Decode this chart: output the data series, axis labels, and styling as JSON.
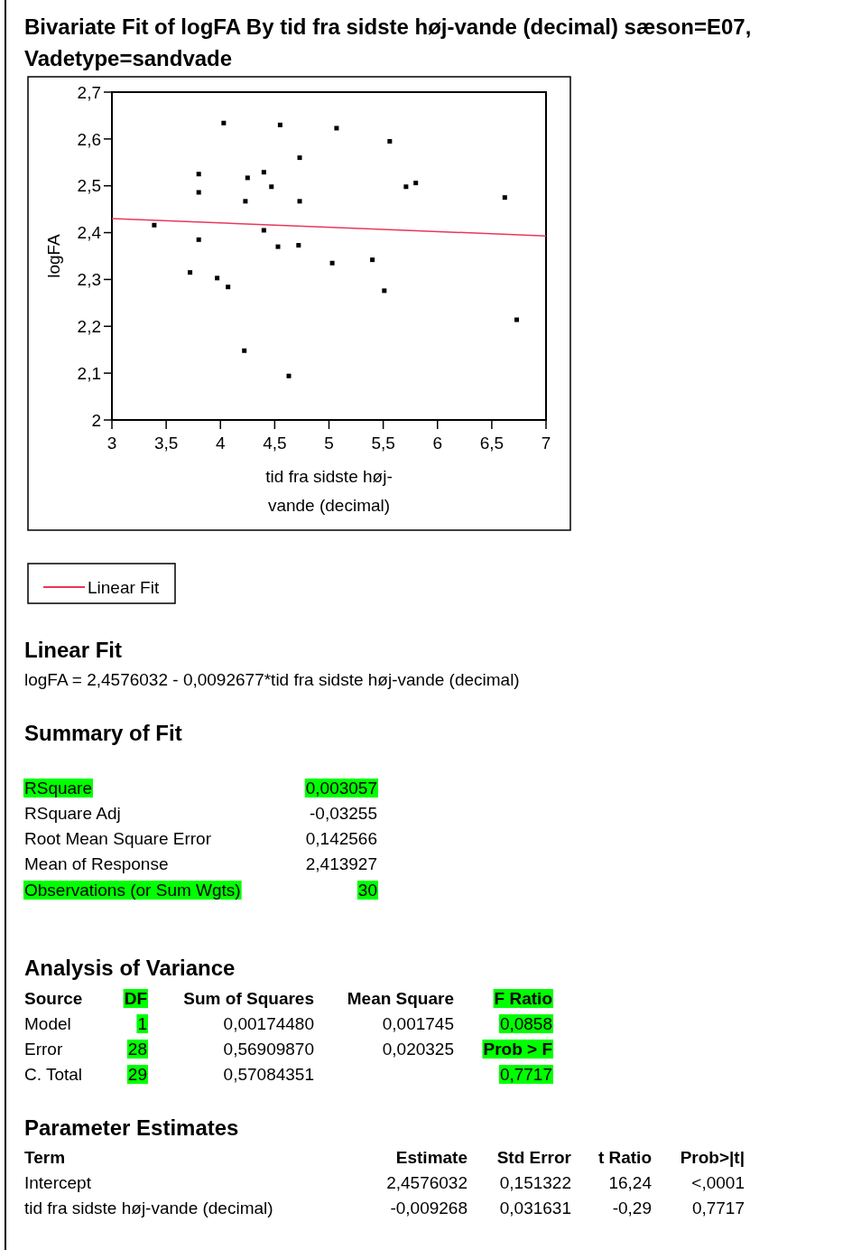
{
  "chart_data": {
    "type": "scatter",
    "title": "Bivariate Fit of logFA By tid fra sidste høj-vande (decimal) sæson=E07, Vadetype=sandvade",
    "xlabel": "tid fra sidste høj-vande (decimal)",
    "ylabel": "logFA",
    "xlim": [
      3,
      7
    ],
    "xticks": [
      3,
      {
        "value": 3.5,
        "label": "3,5"
      },
      4,
      {
        "value": 4.5,
        "label": "4,5"
      },
      5,
      {
        "value": 5.5,
        "label": "5,5"
      },
      6,
      {
        "value": 6.5,
        "label": "6,5"
      },
      7
    ],
    "ylim": [
      2,
      2.7
    ],
    "yticks": [
      2,
      {
        "value": 2.1,
        "label": "2,1"
      },
      {
        "value": 2.2,
        "label": "2,2"
      },
      {
        "value": 2.3,
        "label": "2,3"
      },
      {
        "value": 2.4,
        "label": "2,4"
      },
      {
        "value": 2.5,
        "label": "2,5"
      },
      {
        "value": 2.6,
        "label": "2,6"
      },
      {
        "value": 2.7,
        "label": "2,7"
      }
    ],
    "legend": "bottom left",
    "series": [
      {
        "marker": "square",
        "color": "#000000",
        "x": [
          3.39,
          3.72,
          3.8,
          3.8,
          3.8,
          3.97,
          4.03,
          4.07,
          4.22,
          4.23,
          4.25,
          4.4,
          4.4,
          4.47,
          4.53,
          4.55,
          4.63,
          4.72,
          4.73,
          4.73,
          5.03,
          5.07,
          5.4,
          5.51,
          5.56,
          5.71,
          5.8,
          6.62,
          6.73
        ],
        "values": [
          2.416,
          2.315,
          2.525,
          2.486,
          2.385,
          2.303,
          2.634,
          2.284,
          2.148,
          2.467,
          2.517,
          2.529,
          2.405,
          2.498,
          2.37,
          2.63,
          2.094,
          2.373,
          2.56,
          2.467,
          2.335,
          2.623,
          2.342,
          2.276,
          2.595,
          2.498,
          2.506,
          2.475,
          2.214
        ]
      },
      {
        "type": "line",
        "name": "Linear Fit",
        "color": "#e8385a",
        "x": [
          3,
          7
        ],
        "values": [
          2.43,
          2.393
        ]
      }
    ],
    "annotations": [
      "Linear Fit",
      "logFA = 2,4576032 - 0,0092677*tid fra sidste høj-vande (decimal)",
      "Summary of Fit",
      "RSquare",
      "0,003057",
      "RSquare Adj",
      "-0,03255",
      "Root Mean Square Error",
      "0,142566",
      "Mean of Response",
      "2,413927",
      "Observations (or Sum Wgts)",
      "30",
      "Analysis of Variance",
      "Source",
      "DF",
      "Sum of Squares",
      "Mean Square",
      "F Ratio",
      "Model",
      "1",
      "0,00174480",
      "0,001745",
      "0,0858",
      "Error",
      "28",
      "0,56909870",
      "0,020325",
      "Prob > F",
      "C. Total",
      "29",
      "0,57084351",
      "0,7717",
      "Parameter Estimates",
      "Term",
      "Estimate",
      "Std Error",
      "t Ratio",
      "Prob>|t|",
      "Intercept",
      "2,4576032",
      "0,151322",
      "16,24",
      "<,0001",
      "tid fra sidste høj-vande (decimal)",
      "-0,009268",
      "0,031631",
      "-0,29",
      "0,7717"
    ]
  }
}
